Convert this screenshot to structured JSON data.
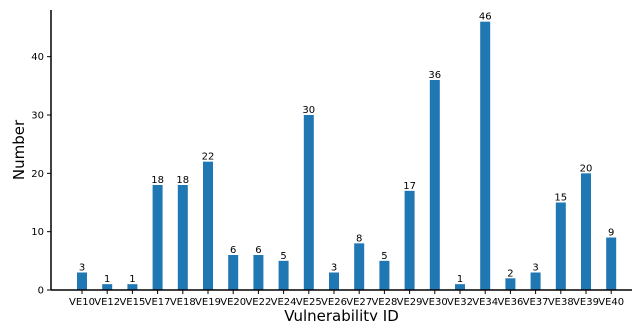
{
  "chart_data": {
    "type": "bar",
    "categories": [
      "VE10",
      "VE12",
      "VE15",
      "VE17",
      "VE18",
      "VE19",
      "VE20",
      "VE22",
      "VE24",
      "VE25",
      "VE26",
      "VE27",
      "VE28",
      "VE29",
      "VE30",
      "VE32",
      "VE34",
      "VE36",
      "VE37",
      "VE38",
      "VE39",
      "VE40"
    ],
    "values": [
      3,
      1,
      1,
      18,
      18,
      22,
      6,
      6,
      5,
      30,
      3,
      8,
      5,
      17,
      36,
      1,
      46,
      2,
      3,
      15,
      20,
      9
    ],
    "xlabel": "Vulnerability ID",
    "ylabel": "Number",
    "ylim": [
      0,
      48
    ],
    "yticks": [
      0,
      10,
      20,
      30,
      40
    ],
    "bar_color": "#1f77b4",
    "grid": false,
    "data_labels": true
  }
}
